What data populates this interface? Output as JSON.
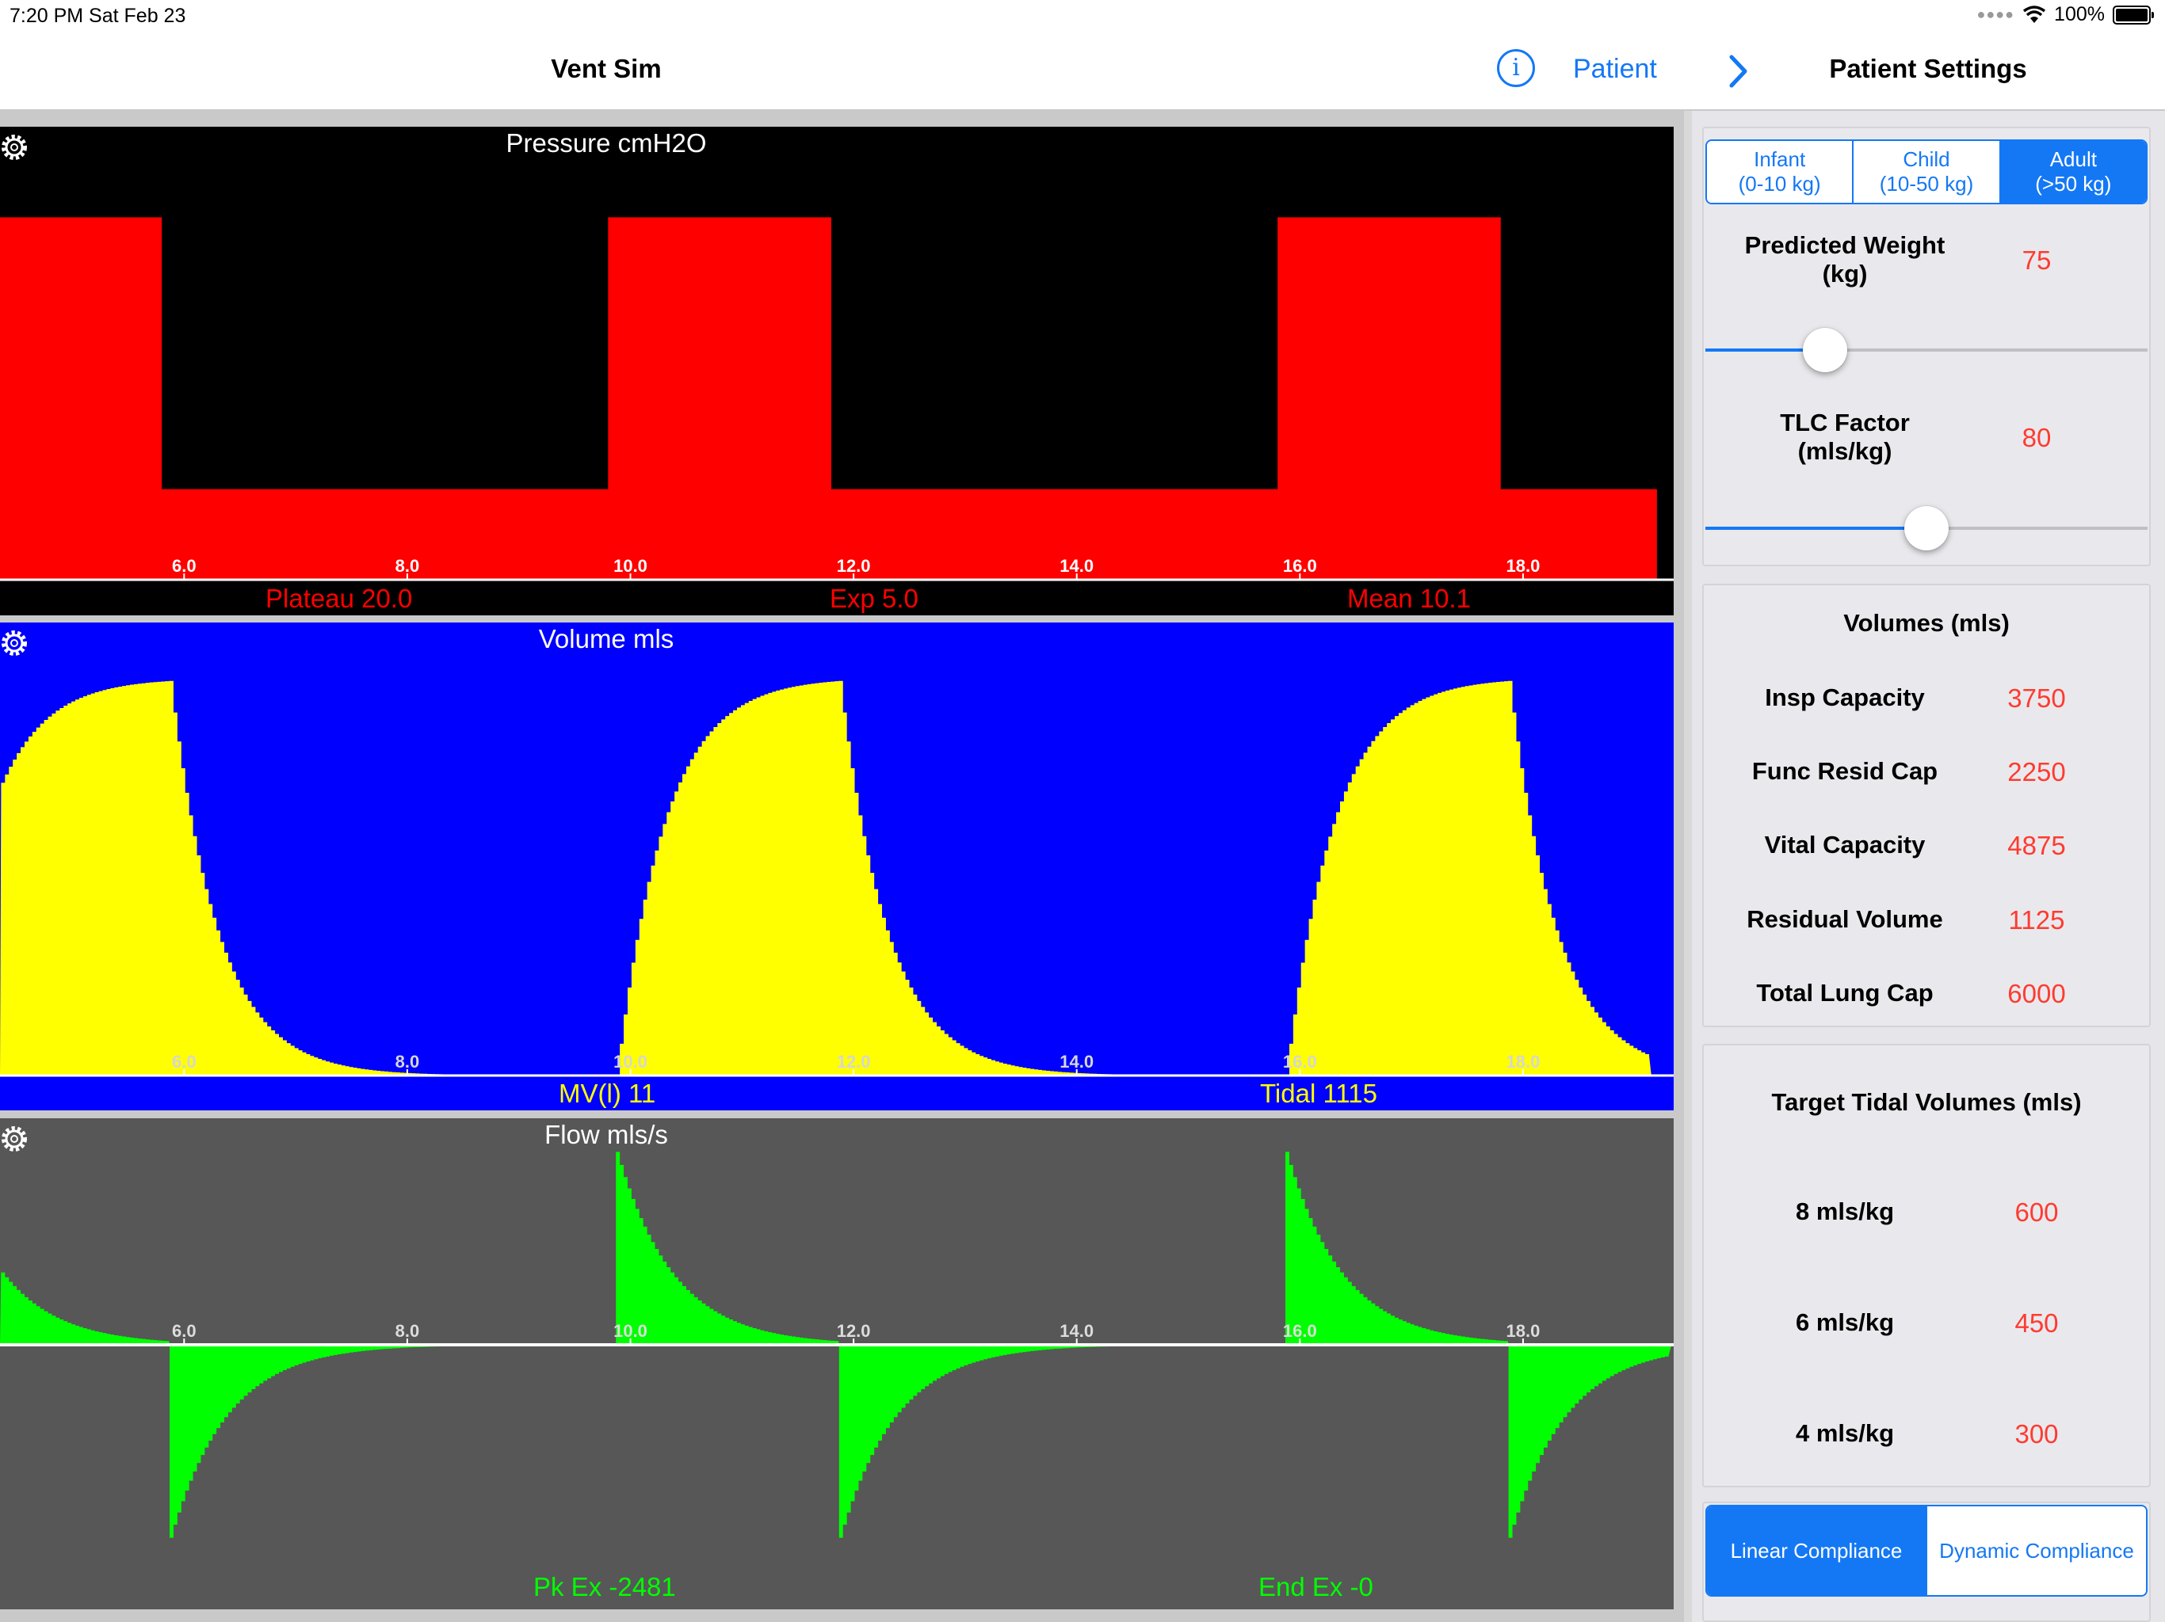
{
  "status_bar": {
    "time_date": "7:20 PM   Sat Feb 23",
    "battery": "100%"
  },
  "nav": {
    "title": "Vent Sim",
    "patient_link": "Patient",
    "settings_title": "Patient Settings"
  },
  "colors": {
    "accent": "#1478f5",
    "value_red": "#ff3b30",
    "pressure_fill": "#ff0000",
    "volume_fill": "#ffff00",
    "flow_fill": "#00ff00"
  },
  "icons": {
    "info": "info-circle-icon",
    "chevron": "chevron-right-icon",
    "gear": "gear-icon"
  },
  "charts": {
    "pressure": {
      "title": "Pressure cmH2O",
      "ticks": [
        "6.0",
        "8.0",
        "10.0",
        "12.0",
        "14.0",
        "16.0",
        "18.0"
      ],
      "stats": {
        "left": "Plateau 20.0",
        "center": "Exp 5.0",
        "right": "Mean 10.1"
      }
    },
    "volume": {
      "title": "Volume mls",
      "ticks": [
        "6.0",
        "8.0",
        "10.0",
        "12.0",
        "14.0",
        "16.0",
        "18.0"
      ],
      "stats": {
        "left": "MV(l) 11",
        "right": "Tidal 1115"
      }
    },
    "flow": {
      "title": "Flow mls/s",
      "ticks": [
        "6.0",
        "8.0",
        "10.0",
        "12.0",
        "14.0",
        "16.0",
        "18.0"
      ],
      "stats": {
        "left": "Pk Ex -2481",
        "right": "End Ex -0"
      }
    }
  },
  "chart_data": [
    {
      "type": "area",
      "title": "Pressure cmH2O",
      "xlim": [
        4.35,
        19.35
      ],
      "ylim": [
        0,
        25
      ],
      "tick_labels": [
        "6.0",
        "8.0",
        "10.0",
        "12.0",
        "14.0",
        "16.0",
        "18.0"
      ],
      "series": [
        {
          "values": [
            [
              4.35,
              20
            ],
            [
              5.8,
              20
            ],
            [
              5.8,
              5
            ],
            [
              9.8,
              5
            ],
            [
              9.8,
              20
            ],
            [
              11.8,
              20
            ],
            [
              11.8,
              5
            ],
            [
              15.8,
              5
            ],
            [
              15.8,
              20
            ],
            [
              17.8,
              20
            ],
            [
              17.8,
              5
            ],
            [
              19.2,
              5
            ]
          ]
        }
      ]
    },
    {
      "type": "area",
      "title": "Volume mls",
      "xlim": [
        4.35,
        19.35
      ],
      "ylim": [
        0,
        1280
      ],
      "tick_labels": [
        "6.0",
        "8.0",
        "10.0",
        "12.0",
        "14.0",
        "16.0",
        "18.0"
      ],
      "breaths": [
        {
          "start": 3.8,
          "end_insp": 5.87,
          "peak": 1115
        },
        {
          "start": 9.87,
          "end_insp": 11.87,
          "peak": 1115
        },
        {
          "start": 15.87,
          "end_insp": 17.87,
          "peak": 1115
        }
      ]
    },
    {
      "type": "area",
      "title": "Flow mls/s",
      "xlim": [
        4.35,
        19.35
      ],
      "ylim": [
        -2750,
        2750
      ],
      "tick_labels": [
        "6.0",
        "8.0",
        "10.0",
        "12.0",
        "14.0",
        "16.0",
        "18.0"
      ],
      "breaths": [
        {
          "insp_start": 3.87,
          "exp_start": 5.87,
          "peak_insp": 2481,
          "peak_exp": -2481
        },
        {
          "insp_start": 9.87,
          "exp_start": 11.87,
          "peak_insp": 2481,
          "peak_exp": -2481
        },
        {
          "insp_start": 15.87,
          "exp_start": 17.87,
          "peak_insp": 2481,
          "peak_exp": -2481
        }
      ]
    }
  ],
  "settings": {
    "patient_type": {
      "options": [
        {
          "line1": "Infant",
          "line2": "(0-10 kg)"
        },
        {
          "line1": "Child",
          "line2": "(10-50 kg)"
        },
        {
          "line1": "Adult",
          "line2": "(>50 kg)"
        }
      ],
      "selected": 2
    },
    "predicted_weight": {
      "label_line1": "Predicted Weight",
      "label_line2": "(kg)",
      "value": "75",
      "slider_fraction": 0.27
    },
    "tlc_factor": {
      "label_line1": "TLC Factor",
      "label_line2": "(mls/kg)",
      "value": "80",
      "slider_fraction": 0.5
    },
    "volumes": {
      "heading": "Volumes (mls)",
      "rows": [
        {
          "label": "Insp Capacity",
          "value": "3750"
        },
        {
          "label": "Func Resid Cap",
          "value": "2250"
        },
        {
          "label": "Vital Capacity",
          "value": "4875"
        },
        {
          "label": "Residual Volume",
          "value": "1125"
        },
        {
          "label": "Total Lung Cap",
          "value": "6000"
        }
      ]
    },
    "tidal": {
      "heading": "Target Tidal Volumes (mls)",
      "rows": [
        {
          "label": "8 mls/kg",
          "value": "600"
        },
        {
          "label": "6 mls/kg",
          "value": "450"
        },
        {
          "label": "4 mls/kg",
          "value": "300"
        }
      ]
    },
    "compliance": {
      "options": [
        "Linear Compliance",
        "Dynamic Compliance"
      ],
      "selected": 0
    }
  }
}
